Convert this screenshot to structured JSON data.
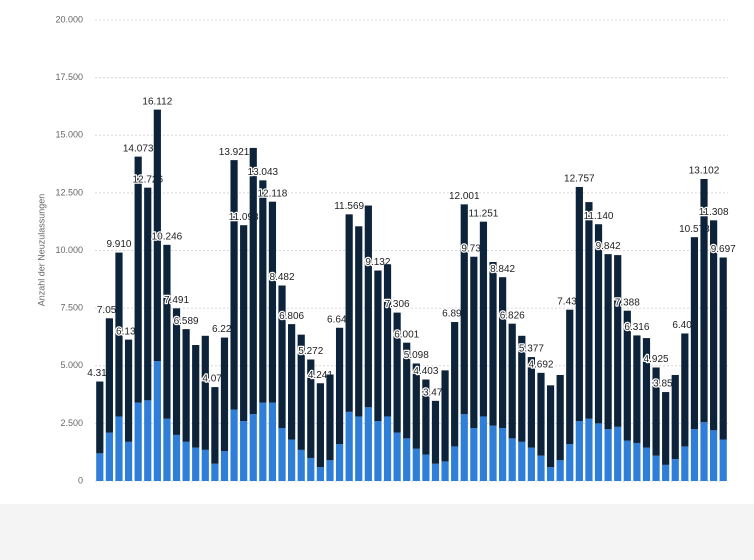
{
  "chart_data": {
    "type": "stacked-bar",
    "y_label": "Anzahl der Neuzulassungen",
    "categories": [
      null,
      null,
      null,
      null,
      null,
      null,
      null,
      null,
      null,
      null,
      null,
      null,
      null,
      null,
      null,
      null,
      null,
      null,
      null,
      null,
      null,
      null,
      null,
      null,
      null,
      null,
      null,
      null,
      null,
      null,
      null,
      null,
      null,
      null,
      null,
      null,
      null,
      null,
      null,
      null,
      null,
      null,
      null,
      null,
      null,
      null,
      null,
      null,
      null,
      null,
      null,
      null,
      null,
      null,
      null,
      null,
      null,
      null,
      null,
      null,
      null,
      null,
      null,
      null,
      null,
      null
    ],
    "series": [
      {
        "color": "#2f7ed8",
        "values": [
          1200,
          2100,
          2800,
          1700,
          3400,
          3500,
          5200,
          2700,
          2000,
          1700,
          1450,
          1350,
          750,
          1300,
          3100,
          2600,
          2900,
          3400,
          3400,
          2300,
          1800,
          1350,
          1000,
          600,
          900,
          1600,
          3000,
          2800,
          3200,
          2600,
          2800,
          2100,
          1850,
          1400,
          1150,
          750,
          850,
          1500,
          2900,
          2300,
          2800,
          2400,
          2300,
          1850,
          1700,
          1450,
          1100,
          600,
          900,
          1600,
          2600,
          2700,
          2500,
          2250,
          2350,
          1750,
          1650,
          1450,
          1100,
          700,
          950,
          1500,
          2250,
          2550,
          2200,
          1800
        ]
      },
      {
        "color": "#0d233a",
        "values": [
          3116,
          4959,
          7110,
          4434,
          10673,
          9226,
          10912,
          7546,
          5491,
          4889,
          4450,
          4950,
          3324,
          4923,
          10821,
          8498,
          11550,
          9643,
          8718,
          6182,
          5006,
          5000,
          4272,
          3641,
          3720,
          5048,
          8569,
          8250,
          8750,
          6532,
          6600,
          5206,
          4151,
          3698,
          3253,
          2728,
          3950,
          5397,
          9101,
          7430,
          8451,
          7100,
          6542,
          4976,
          4600,
          3927,
          3592,
          3550,
          3700,
          5832,
          10157,
          9400,
          8640,
          7592,
          7450,
          5638,
          4666,
          4750,
          3825,
          3159,
          3650,
          4900,
          8328,
          10552,
          9108,
          7897
        ]
      }
    ],
    "totals": {
      "values": [
        4316,
        7059,
        9910,
        6134,
        14073,
        12726,
        16112,
        10246,
        7491,
        6589,
        null,
        null,
        4074,
        6223,
        13921,
        11098,
        null,
        13043,
        12118,
        8482,
        6806,
        null,
        5272,
        4241,
        null,
        6648,
        11569,
        null,
        null,
        9132,
        null,
        7306,
        6001,
        5098,
        4403,
        3478,
        null,
        6897,
        12001,
        9730,
        11251,
        null,
        8842,
        6826,
        null,
        5377,
        4692,
        null,
        null,
        7432,
        12757,
        null,
        11140,
        9842,
        null,
        7388,
        6316,
        null,
        4925,
        3859,
        null,
        6400,
        10578,
        13102,
        11308,
        9697
      ],
      "value_labels": [
        "4.316",
        "7.059",
        "9.910",
        "6.134",
        "14.073",
        "12.726",
        "16.112",
        "10.246",
        "7.491",
        "6.589",
        null,
        null,
        "4.074",
        "6.223",
        "13.921",
        "11.098",
        null,
        "13.043",
        "12.118",
        "8.482",
        "6.806",
        null,
        "5.272",
        "4.241",
        null,
        "6.648",
        "11.569",
        null,
        null,
        "9.132",
        null,
        "7.306",
        "6.001",
        "5.098",
        "4.403",
        "3.478",
        null,
        "6.897",
        "12.001",
        "9.730",
        "11.251",
        null,
        "8.842",
        "6.826",
        null,
        "5.377",
        "4.692",
        null,
        null,
        "7.432",
        "12.757",
        null,
        "11.140",
        "9.842",
        null,
        "7.388",
        "6.316",
        null,
        "4.925",
        "3.859",
        null,
        "6.400",
        "10.578",
        "13.102",
        "11.308",
        "9.697"
      ]
    },
    "ylim": [
      0,
      20000
    ],
    "yticks": [
      {
        "value": 0,
        "label": "0"
      },
      {
        "value": 2500,
        "label": "2.500"
      },
      {
        "value": 5000,
        "label": "5.000"
      },
      {
        "value": 7500,
        "label": "7.500"
      },
      {
        "value": 10000,
        "label": "10.000"
      },
      {
        "value": 12500,
        "label": "12.500"
      },
      {
        "value": 15000,
        "label": "15.000"
      },
      {
        "value": 17500,
        "label": "17.500"
      },
      {
        "value": 20000,
        "label": "20.000"
      }
    ],
    "grid": true
  }
}
